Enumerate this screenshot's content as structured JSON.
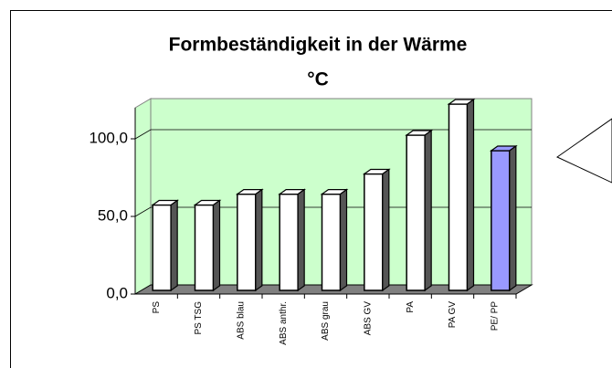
{
  "chart_data": {
    "type": "bar3d",
    "title": [
      "Formbeständigkeit in der Wärme",
      "°C"
    ],
    "categories": [
      "PS",
      "PS TSG",
      "ABS blau",
      "ABS anthr.",
      "ABS grau",
      "ABS GV",
      "PA",
      "PA GV",
      "PE/ PP"
    ],
    "values": [
      55,
      55,
      62,
      62,
      62,
      75,
      100,
      120,
      90
    ],
    "colors": [
      "#ffffff",
      "#ffffff",
      "#ffffff",
      "#ffffff",
      "#ffffff",
      "#ffffff",
      "#ffffff",
      "#ffffff",
      "#9999ff"
    ],
    "ylim": [
      0,
      120
    ],
    "yticks": [
      {
        "value": 0,
        "label": "0,0"
      },
      {
        "value": 50,
        "label": "50,0"
      },
      {
        "value": 100,
        "label": "100,0"
      }
    ],
    "grid": true,
    "wall_color": "#ccffcc",
    "floor_color": "#808080"
  }
}
